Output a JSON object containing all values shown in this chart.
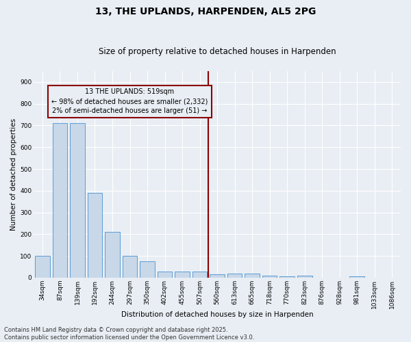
{
  "title_line1": "13, THE UPLANDS, HARPENDEN, AL5 2PG",
  "title_line2": "Size of property relative to detached houses in Harpenden",
  "xlabel": "Distribution of detached houses by size in Harpenden",
  "ylabel": "Number of detached properties",
  "categories": [
    "34sqm",
    "87sqm",
    "139sqm",
    "192sqm",
    "244sqm",
    "297sqm",
    "350sqm",
    "402sqm",
    "455sqm",
    "507sqm",
    "560sqm",
    "613sqm",
    "665sqm",
    "718sqm",
    "770sqm",
    "823sqm",
    "876sqm",
    "928sqm",
    "981sqm",
    "1033sqm",
    "1086sqm"
  ],
  "values": [
    100,
    710,
    710,
    390,
    210,
    100,
    75,
    28,
    28,
    28,
    15,
    20,
    20,
    8,
    6,
    8,
    0,
    0,
    5,
    0,
    0
  ],
  "bar_color": "#c8d8e8",
  "bar_edge_color": "#5b9bd5",
  "vline_x_index": 9,
  "vline_color": "#8b0000",
  "annotation_text": "13 THE UPLANDS: 519sqm\n← 98% of detached houses are smaller (2,332)\n2% of semi-detached houses are larger (51) →",
  "annotation_box_color": "#8b0000",
  "ylim": [
    0,
    950
  ],
  "yticks": [
    0,
    100,
    200,
    300,
    400,
    500,
    600,
    700,
    800,
    900
  ],
  "background_color": "#e8eef4",
  "grid_color": "#ffffff",
  "footer_line1": "Contains HM Land Registry data © Crown copyright and database right 2025.",
  "footer_line2": "Contains public sector information licensed under the Open Government Licence v3.0.",
  "title_fontsize": 10,
  "subtitle_fontsize": 8.5,
  "axis_label_fontsize": 7.5,
  "tick_fontsize": 6.5,
  "annotation_fontsize": 7,
  "footer_fontsize": 6
}
